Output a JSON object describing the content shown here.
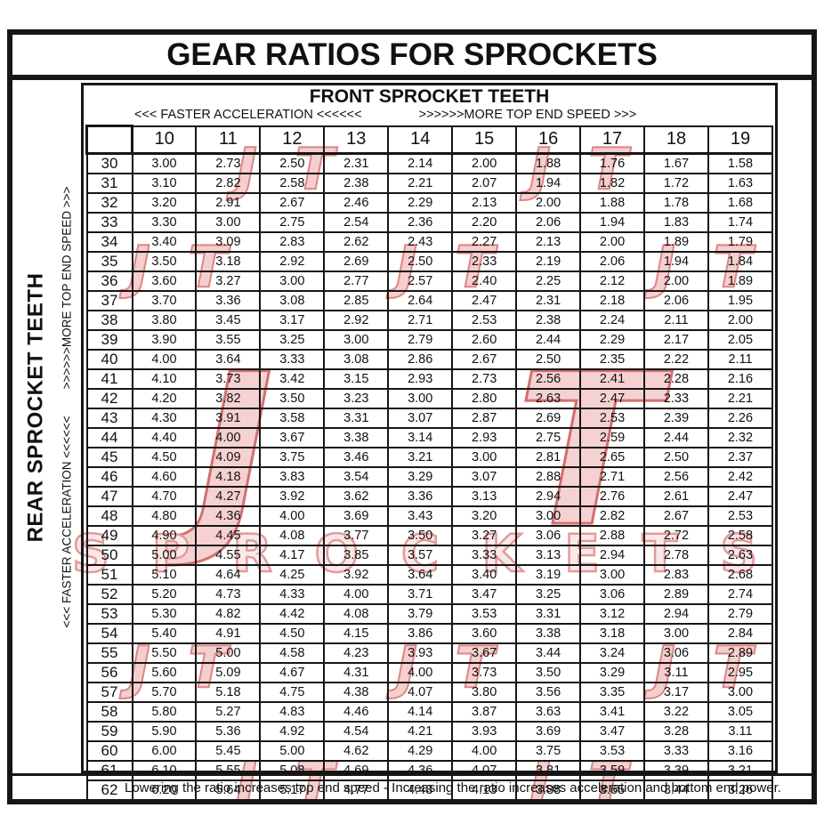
{
  "window": {
    "title": "GEAR RATIOS FOR SPROCKETS"
  },
  "front_axis": {
    "title": "FRONT SPROCKET TEETH",
    "accel_label": "<<< FASTER  ACCELERATION <<<<<<",
    "speed_label": ">>>>>>MORE TOP END SPEED >>>"
  },
  "rear_axis": {
    "title": "REAR SPROCKET TEETH",
    "accel_label": "<<< FASTER  ACCELERATION <<<<<<",
    "speed_label": ">>>>>>MORE TOP END SPEED >>>"
  },
  "footer": {
    "note": "Lowering the ratio increases top end speed - Increasing the ratio increases acceleration and bottom end power."
  },
  "watermark": {
    "logo_text": "JT",
    "brand_text": "SPROCKETS",
    "fill_color": "#f5c9c9",
    "outline_color": "#d06060"
  },
  "chart_data": {
    "type": "table",
    "title": "GEAR RATIOS FOR SPROCKETS",
    "corner_label": "",
    "columns": [
      "10",
      "11",
      "12",
      "13",
      "14",
      "15",
      "16",
      "17",
      "18",
      "19"
    ],
    "rows": [
      {
        "rear": "30",
        "values": [
          "3.00",
          "2.73",
          "2.50",
          "2.31",
          "2.14",
          "2.00",
          "1.88",
          "1.76",
          "1.67",
          "1.58"
        ]
      },
      {
        "rear": "31",
        "values": [
          "3.10",
          "2.82",
          "2.58",
          "2.38",
          "2.21",
          "2.07",
          "1.94",
          "1.82",
          "1.72",
          "1.63"
        ]
      },
      {
        "rear": "32",
        "values": [
          "3.20",
          "2.91",
          "2.67",
          "2.46",
          "2.29",
          "2.13",
          "2.00",
          "1.88",
          "1.78",
          "1.68"
        ]
      },
      {
        "rear": "33",
        "values": [
          "3.30",
          "3.00",
          "2.75",
          "2.54",
          "2.36",
          "2.20",
          "2.06",
          "1.94",
          "1.83",
          "1.74"
        ]
      },
      {
        "rear": "34",
        "values": [
          "3.40",
          "3.09",
          "2.83",
          "2.62",
          "2.43",
          "2.27",
          "2.13",
          "2.00",
          "1.89",
          "1.79"
        ]
      },
      {
        "rear": "35",
        "values": [
          "3.50",
          "3.18",
          "2.92",
          "2.69",
          "2.50",
          "2.33",
          "2.19",
          "2.06",
          "1.94",
          "1.84"
        ]
      },
      {
        "rear": "36",
        "values": [
          "3.60",
          "3.27",
          "3.00",
          "2.77",
          "2.57",
          "2.40",
          "2.25",
          "2.12",
          "2.00",
          "1.89"
        ]
      },
      {
        "rear": "37",
        "values": [
          "3.70",
          "3.36",
          "3.08",
          "2.85",
          "2.64",
          "2.47",
          "2.31",
          "2.18",
          "2.06",
          "1.95"
        ]
      },
      {
        "rear": "38",
        "values": [
          "3.80",
          "3.45",
          "3.17",
          "2.92",
          "2.71",
          "2.53",
          "2.38",
          "2.24",
          "2.11",
          "2.00"
        ]
      },
      {
        "rear": "39",
        "values": [
          "3.90",
          "3.55",
          "3.25",
          "3.00",
          "2.79",
          "2.60",
          "2.44",
          "2.29",
          "2.17",
          "2.05"
        ]
      },
      {
        "rear": "40",
        "values": [
          "4.00",
          "3.64",
          "3.33",
          "3.08",
          "2.86",
          "2.67",
          "2.50",
          "2.35",
          "2.22",
          "2.11"
        ]
      },
      {
        "rear": "41",
        "values": [
          "4.10",
          "3.73",
          "3.42",
          "3.15",
          "2.93",
          "2.73",
          "2.56",
          "2.41",
          "2.28",
          "2.16"
        ]
      },
      {
        "rear": "42",
        "values": [
          "4.20",
          "3.82",
          "3.50",
          "3.23",
          "3.00",
          "2.80",
          "2.63",
          "2.47",
          "2.33",
          "2.21"
        ]
      },
      {
        "rear": "43",
        "values": [
          "4.30",
          "3.91",
          "3.58",
          "3.31",
          "3.07",
          "2.87",
          "2.69",
          "2.53",
          "2.39",
          "2.26"
        ]
      },
      {
        "rear": "44",
        "values": [
          "4.40",
          "4.00",
          "3.67",
          "3.38",
          "3.14",
          "2.93",
          "2.75",
          "2.59",
          "2.44",
          "2.32"
        ]
      },
      {
        "rear": "45",
        "values": [
          "4.50",
          "4.09",
          "3.75",
          "3.46",
          "3.21",
          "3.00",
          "2.81",
          "2.65",
          "2.50",
          "2.37"
        ]
      },
      {
        "rear": "46",
        "values": [
          "4.60",
          "4.18",
          "3.83",
          "3.54",
          "3.29",
          "3.07",
          "2.88",
          "2.71",
          "2.56",
          "2.42"
        ]
      },
      {
        "rear": "47",
        "values": [
          "4.70",
          "4.27",
          "3.92",
          "3.62",
          "3.36",
          "3.13",
          "2.94",
          "2.76",
          "2.61",
          "2.47"
        ]
      },
      {
        "rear": "48",
        "values": [
          "4.80",
          "4.36",
          "4.00",
          "3.69",
          "3.43",
          "3.20",
          "3.00",
          "2.82",
          "2.67",
          "2.53"
        ]
      },
      {
        "rear": "49",
        "values": [
          "4.90",
          "4.45",
          "4.08",
          "3.77",
          "3.50",
          "3.27",
          "3.06",
          "2.88",
          "2.72",
          "2.58"
        ]
      },
      {
        "rear": "50",
        "values": [
          "5.00",
          "4.55",
          "4.17",
          "3.85",
          "3.57",
          "3.33",
          "3.13",
          "2.94",
          "2.78",
          "2.63"
        ]
      },
      {
        "rear": "51",
        "values": [
          "5.10",
          "4.64",
          "4.25",
          "3.92",
          "3.64",
          "3.40",
          "3.19",
          "3.00",
          "2.83",
          "2.68"
        ]
      },
      {
        "rear": "52",
        "values": [
          "5.20",
          "4.73",
          "4.33",
          "4.00",
          "3.71",
          "3.47",
          "3.25",
          "3.06",
          "2.89",
          "2.74"
        ]
      },
      {
        "rear": "53",
        "values": [
          "5.30",
          "4.82",
          "4.42",
          "4.08",
          "3.79",
          "3.53",
          "3.31",
          "3.12",
          "2.94",
          "2.79"
        ]
      },
      {
        "rear": "54",
        "values": [
          "5.40",
          "4.91",
          "4.50",
          "4.15",
          "3.86",
          "3.60",
          "3.38",
          "3.18",
          "3.00",
          "2.84"
        ]
      },
      {
        "rear": "55",
        "values": [
          "5.50",
          "5.00",
          "4.58",
          "4.23",
          "3.93",
          "3.67",
          "3.44",
          "3.24",
          "3.06",
          "2.89"
        ]
      },
      {
        "rear": "56",
        "values": [
          "5.60",
          "5.09",
          "4.67",
          "4.31",
          "4.00",
          "3.73",
          "3.50",
          "3.29",
          "3.11",
          "2.95"
        ]
      },
      {
        "rear": "57",
        "values": [
          "5.70",
          "5.18",
          "4.75",
          "4.38",
          "4.07",
          "3.80",
          "3.56",
          "3.35",
          "3.17",
          "3.00"
        ]
      },
      {
        "rear": "58",
        "values": [
          "5.80",
          "5.27",
          "4.83",
          "4.46",
          "4.14",
          "3.87",
          "3.63",
          "3.41",
          "3.22",
          "3.05"
        ]
      },
      {
        "rear": "59",
        "values": [
          "5.90",
          "5.36",
          "4.92",
          "4.54",
          "4.21",
          "3.93",
          "3.69",
          "3.47",
          "3.28",
          "3.11"
        ]
      },
      {
        "rear": "60",
        "values": [
          "6.00",
          "5.45",
          "5.00",
          "4.62",
          "4.29",
          "4.00",
          "3.75",
          "3.53",
          "3.33",
          "3.16"
        ]
      },
      {
        "rear": "61",
        "values": [
          "6.10",
          "5.55",
          "5.08",
          "4.69",
          "4.36",
          "4.07",
          "3.81",
          "3.59",
          "3.39",
          "3.21"
        ]
      },
      {
        "rear": "62",
        "values": [
          "6.20",
          "5.64",
          "5.17",
          "4.77",
          "4.43",
          "4.13",
          "3.88",
          "3.65",
          "3.44",
          "3.26"
        ]
      }
    ]
  }
}
